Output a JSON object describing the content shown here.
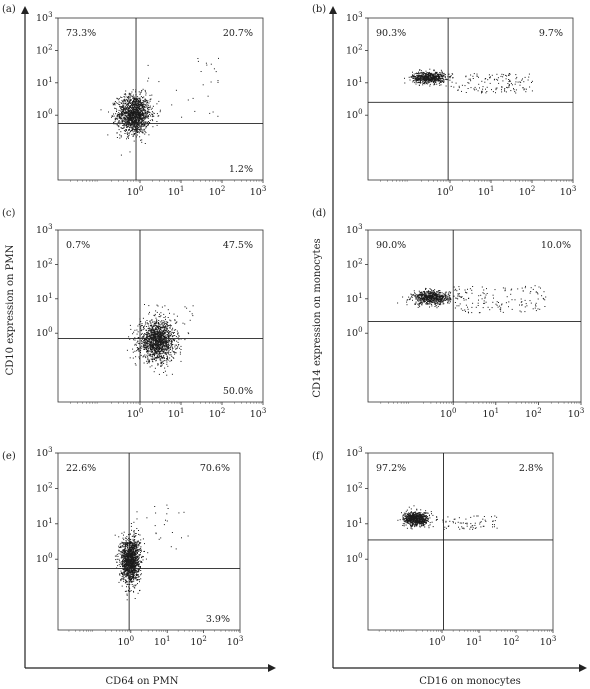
{
  "figure": {
    "x_axis_left": "CD64 on PMN",
    "x_axis_right": "CD16 on monocytes",
    "y_axis_left": "CD10 expression on PMN",
    "y_axis_right": "CD14 expression on monocytes"
  },
  "chart_data": [
    {
      "panel": "(a)",
      "type": "scatter",
      "scale": "log",
      "xlim": [
        0.01,
        1000
      ],
      "ylim": [
        0.01,
        1000
      ],
      "ticks": [
        "10",
        "10",
        "10",
        "10"
      ],
      "tick_exps": [
        "0",
        "1",
        "2",
        "3"
      ],
      "gate": [
        0.8,
        0.55
      ],
      "quadrants": [
        {
          "label": "73.3%",
          "pos": "top-left"
        },
        {
          "label": "20.7%",
          "pos": "top-right"
        },
        {
          "label": "1.2%",
          "pos": "bottom-right"
        }
      ],
      "cluster": {
        "center": [
          0.7,
          1.1
        ],
        "spread": [
          0.2,
          0.3
        ],
        "count": 1400
      },
      "tail": {
        "x_range": [
          1,
          100
        ],
        "y_range": [
          0.8,
          60
        ],
        "count": 30
      },
      "color": "#1a1a1a"
    },
    {
      "panel": "(b)",
      "type": "scatter",
      "scale": "log",
      "xlim": [
        0.01,
        1000
      ],
      "ylim": [
        0.01,
        1000
      ],
      "ticks": [
        "10",
        "10",
        "10",
        "10"
      ],
      "tick_exps": [
        "0",
        "1",
        "2",
        "3"
      ],
      "gate": [
        0.9,
        2.5
      ],
      "quadrants": [
        {
          "label": "90.3%",
          "pos": "top-left"
        },
        {
          "label": "9.7%",
          "pos": "top-right"
        }
      ],
      "cluster": {
        "center": [
          0.3,
          15
        ],
        "spread": [
          0.2,
          0.09
        ],
        "count": 650
      },
      "tail": {
        "x_range": [
          1,
          100
        ],
        "y_range": [
          5,
          20
        ],
        "count": 140
      },
      "color": "#1a1a1a"
    },
    {
      "panel": "(c)",
      "type": "scatter",
      "scale": "log",
      "xlim": [
        0.01,
        1000
      ],
      "ylim": [
        0.01,
        1000
      ],
      "ticks": [
        "10",
        "10",
        "10",
        "10"
      ],
      "tick_exps": [
        "0",
        "1",
        "2",
        "3"
      ],
      "gate": [
        1.0,
        0.7
      ],
      "quadrants": [
        {
          "label": "0.7%",
          "pos": "top-left"
        },
        {
          "label": "47.5%",
          "pos": "top-right"
        },
        {
          "label": "50.0%",
          "pos": "bottom-right"
        }
      ],
      "cluster": {
        "center": [
          2.6,
          0.6
        ],
        "spread": [
          0.22,
          0.28
        ],
        "count": 1400
      },
      "tail": {
        "x_range": [
          1,
          20
        ],
        "y_range": [
          1,
          8
        ],
        "count": 40
      },
      "color": "#1a1a1a"
    },
    {
      "panel": "(d)",
      "type": "scatter",
      "scale": "log",
      "xlim": [
        0.01,
        1000
      ],
      "ylim": [
        0.01,
        1000
      ],
      "ticks": [
        "10",
        "10",
        "10",
        "10"
      ],
      "tick_exps": [
        "0",
        "1",
        "2",
        "3"
      ],
      "gate": [
        1.0,
        2.2
      ],
      "quadrants": [
        {
          "label": "90.0%",
          "pos": "top-left"
        },
        {
          "label": "10.0%",
          "pos": "top-right"
        }
      ],
      "cluster": {
        "center": [
          0.3,
          11
        ],
        "spread": [
          0.22,
          0.1
        ],
        "count": 650
      },
      "tail": {
        "x_range": [
          1,
          150
        ],
        "y_range": [
          4,
          25
        ],
        "count": 150
      },
      "color": "#1a1a1a"
    },
    {
      "panel": "(e)",
      "type": "scatter",
      "scale": "log",
      "xlim": [
        0.01,
        1000
      ],
      "ylim": [
        0.01,
        1000
      ],
      "ticks": [
        "10",
        "10",
        "10",
        "10"
      ],
      "tick_exps": [
        "0",
        "1",
        "2",
        "3"
      ],
      "gate": [
        0.9,
        0.55
      ],
      "quadrants": [
        {
          "label": "22.6%",
          "pos": "top-left"
        },
        {
          "label": "70.6%",
          "pos": "top-right"
        },
        {
          "label": "3.9%",
          "pos": "bottom-right"
        }
      ],
      "cluster": {
        "center": [
          0.95,
          1.0
        ],
        "spread": [
          0.13,
          0.32
        ],
        "count": 1400
      },
      "tail": {
        "x_range": [
          1,
          40
        ],
        "y_range": [
          1,
          50
        ],
        "count": 30
      },
      "color": "#1a1a1a"
    },
    {
      "panel": "(f)",
      "type": "scatter",
      "scale": "log",
      "xlim": [
        0.01,
        1000
      ],
      "ylim": [
        0.01,
        1000
      ],
      "ticks": [
        "10",
        "10",
        "10",
        "10"
      ],
      "tick_exps": [
        "0",
        "1",
        "2",
        "3"
      ],
      "gate": [
        1.1,
        3.5
      ],
      "quadrants": [
        {
          "label": "97.2%",
          "pos": "top-left"
        },
        {
          "label": "2.8%",
          "pos": "top-right"
        }
      ],
      "cluster": {
        "center": [
          0.2,
          14
        ],
        "spread": [
          0.17,
          0.1
        ],
        "count": 700
      },
      "tail": {
        "x_range": [
          1,
          30
        ],
        "y_range": [
          7,
          18
        ],
        "count": 70
      },
      "color": "#1a1a1a"
    }
  ]
}
